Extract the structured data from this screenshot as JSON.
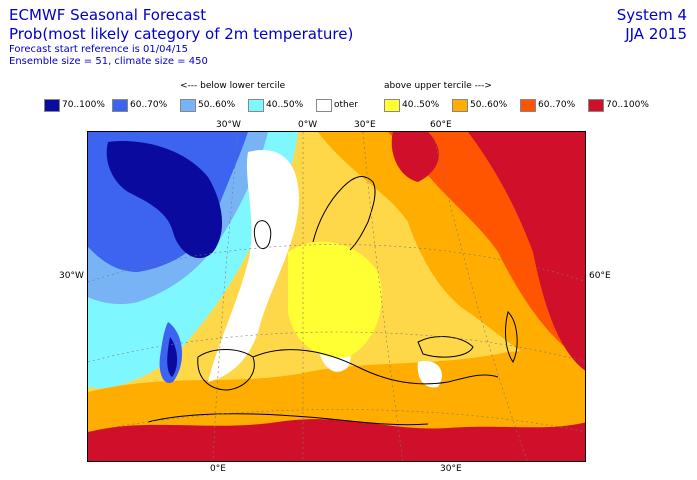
{
  "header": {
    "title_line1": "ECMWF Seasonal Forecast",
    "title_line2": "Prob(most likely category of 2m temperature)",
    "sub_line1": "Forecast start reference is 01/04/15",
    "sub_line2": "Ensemble size = 51, climate size = 450",
    "system": "System 4",
    "season": "JJA 2015"
  },
  "legend": {
    "below_label": "<--- below lower tercile",
    "above_label": "above upper tercile --->",
    "items": [
      {
        "label": "70..100%",
        "color": "#0a0a9e"
      },
      {
        "label": "60..70%",
        "color": "#3c64f0"
      },
      {
        "label": "50..60%",
        "color": "#78b4f5"
      },
      {
        "label": "40..50%",
        "color": "#7ff7ff"
      },
      {
        "label": "other",
        "color": "#ffffff"
      },
      {
        "label": "40..50%",
        "color": "#ffff33"
      },
      {
        "label": "50..60%",
        "color": "#ffad00"
      },
      {
        "label": "60..70%",
        "color": "#ff5500"
      },
      {
        "label": "70..100%",
        "color": "#d0102a"
      }
    ]
  },
  "map": {
    "top_labels": [
      "30°W",
      "0°W",
      "30°E",
      "60°E"
    ],
    "bottom_labels": [
      "0°E",
      "30°E"
    ],
    "left_label": "30°W",
    "right_label": "60°E"
  }
}
